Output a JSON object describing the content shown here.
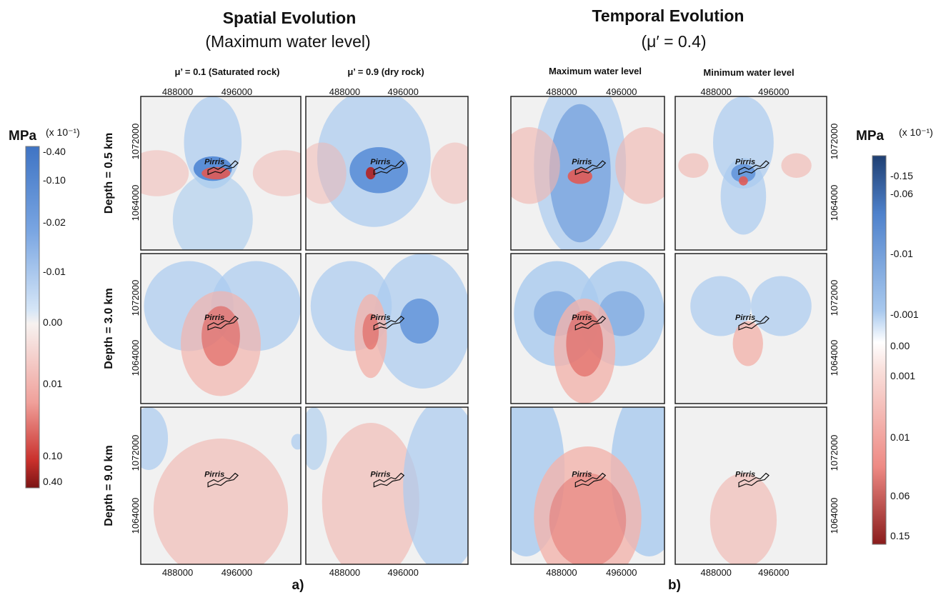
{
  "left": {
    "title": "Spatial Evolution",
    "subtitle": "(Maximum water level)",
    "columns": [
      "μ’ = 0.1 (Saturated rock)",
      "μ’ = 0.9 (dry rock)"
    ],
    "label": "a)"
  },
  "right": {
    "title": "Temporal Evolution",
    "subtitle": "(μ′ = 0.4)",
    "columns": [
      "Maximum water level",
      "Minimum water level"
    ],
    "label": "b)"
  },
  "rows": [
    "Depth = 0.5 km",
    "Depth = 3.0 km",
    "Depth = 9.0 km"
  ],
  "x_ticks": [
    "488000",
    "496000"
  ],
  "y_ticks": [
    "1072000",
    "1064000"
  ],
  "place": "Pirris",
  "colorbars": [
    {
      "unit": "MPa",
      "scale": "(x 10⁻¹)",
      "labels": [
        "-0.40",
        "-0.10",
        "-0.02",
        "-0.01",
        "0.00",
        "0.01",
        "0.10",
        "0.40"
      ]
    },
    {
      "unit": "MPa",
      "scale": "(x 10⁻¹)",
      "labels": [
        "-0.15",
        "-0.06",
        "-0.01",
        "-0.001",
        "0.00",
        "0.001",
        "0.01",
        "0.06",
        "0.15"
      ]
    }
  ]
}
